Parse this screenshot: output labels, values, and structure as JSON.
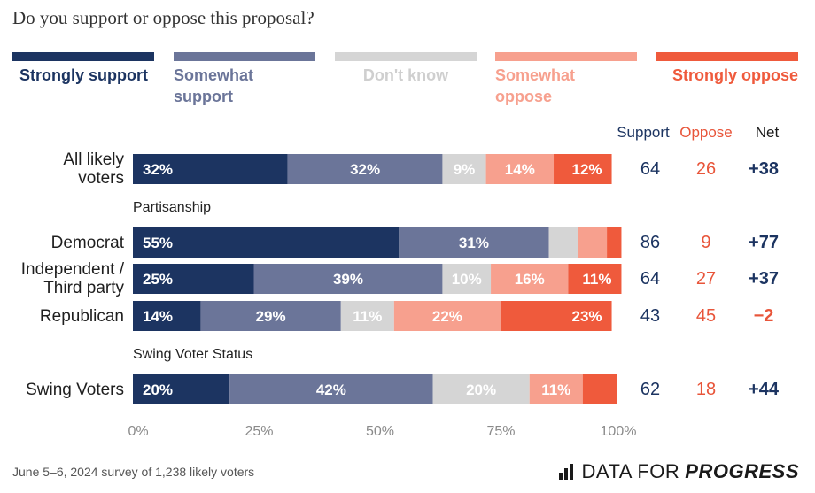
{
  "title": "Do you support or oppose this proposal?",
  "colors": {
    "strongly_support": "#1c3461",
    "somewhat_support": "#6b7599",
    "dont_know": "#d5d5d5",
    "somewhat_oppose": "#f7a08e",
    "strongly_oppose": "#ef5a3c",
    "support_text": "#1c3461",
    "oppose_text": "#e8553a"
  },
  "legend": [
    {
      "label": "Strongly support",
      "color": "#1c3461"
    },
    {
      "label": "Somewhat support",
      "color": "#6b7599"
    },
    {
      "label": "Don't know",
      "color": "#d5d5d5"
    },
    {
      "label": "Somewhat oppose",
      "color": "#f7a08e"
    },
    {
      "label": "Strongly oppose",
      "color": "#ef5a3c"
    }
  ],
  "column_headers": {
    "support": "Support",
    "oppose": "Oppose",
    "net": "Net"
  },
  "sections": [
    "Partisanship",
    "Swing Voter Status"
  ],
  "chart_data": {
    "type": "bar",
    "orientation": "horizontal",
    "stacked": true,
    "xlim": [
      0,
      100
    ],
    "x_ticks": [
      "0%",
      "25%",
      "50%",
      "75%",
      "100%"
    ],
    "categories": [
      "All likely voters",
      "Democrat",
      "Independent / Third party",
      "Republican",
      "Swing Voters"
    ],
    "series": [
      {
        "name": "Strongly support",
        "values": [
          32,
          55,
          25,
          14,
          20
        ],
        "labels": [
          "32%",
          "55%",
          "25%",
          "14%",
          "20%"
        ]
      },
      {
        "name": "Somewhat support",
        "values": [
          32,
          31,
          39,
          29,
          42
        ],
        "labels": [
          "32%",
          "31%",
          "39%",
          "29%",
          "42%"
        ]
      },
      {
        "name": "Don't know",
        "values": [
          9,
          6,
          10,
          11,
          20
        ],
        "labels": [
          "9%",
          "",
          "10%",
          "11%",
          "20%"
        ]
      },
      {
        "name": "Somewhat oppose",
        "values": [
          14,
          6,
          16,
          22,
          11
        ],
        "labels": [
          "14%",
          "",
          "16%",
          "22%",
          "11%"
        ]
      },
      {
        "name": "Strongly oppose",
        "values": [
          12,
          3,
          11,
          23,
          7
        ],
        "labels": [
          "12%",
          "",
          "11%",
          "23%",
          ""
        ]
      }
    ],
    "support": [
      "64",
      "86",
      "64",
      "43",
      "62"
    ],
    "oppose": [
      "26",
      "9",
      "27",
      "45",
      "18"
    ],
    "net": [
      "+38",
      "+77",
      "+37",
      "−2",
      "+44"
    ]
  },
  "footer": {
    "note": "June 5–6, 2024 survey of 1,238 likely voters",
    "brand_prefix": "DATA FOR",
    "brand_suffix": "PROGRESS"
  }
}
